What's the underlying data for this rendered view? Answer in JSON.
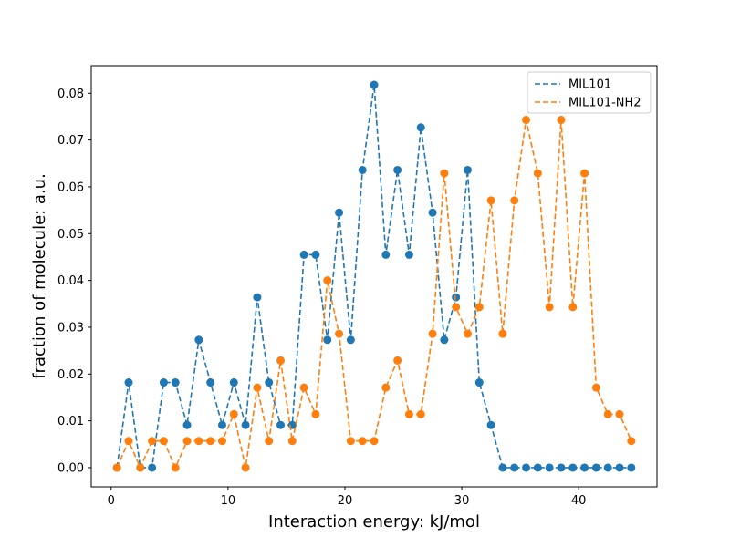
{
  "chart_data": {
    "type": "line",
    "xlabel": "Interaction energy: kJ/mol",
    "ylabel": "fraction of molecule: a.u.",
    "xlim": [
      -1.7,
      46.7
    ],
    "ylim": [
      -0.0041,
      0.0859
    ],
    "xticks": [
      0,
      10,
      20,
      30,
      40
    ],
    "yticks": [
      0.0,
      0.01,
      0.02,
      0.03,
      0.04,
      0.05,
      0.06,
      0.07,
      0.08
    ],
    "ytick_labels": [
      "0.00",
      "0.01",
      "0.02",
      "0.03",
      "0.04",
      "0.05",
      "0.06",
      "0.07",
      "0.08"
    ],
    "grid": false,
    "legend_position": "top-right",
    "x": [
      0.5,
      1.5,
      2.5,
      3.5,
      4.5,
      5.5,
      6.5,
      7.5,
      8.5,
      9.5,
      10.5,
      11.5,
      12.5,
      13.5,
      14.5,
      15.5,
      16.5,
      17.5,
      18.5,
      19.5,
      20.5,
      21.5,
      22.5,
      23.5,
      24.5,
      25.5,
      26.5,
      27.5,
      28.5,
      29.5,
      30.5,
      31.5,
      32.5,
      33.5,
      34.5,
      35.5,
      36.5,
      37.5,
      38.5,
      39.5,
      40.5,
      41.5,
      42.5,
      43.5,
      44.5
    ],
    "series": [
      {
        "name": "MIL101",
        "color": "#1f77b4",
        "line_style": "dashed",
        "marker": "circle",
        "values": [
          0.0,
          0.0182,
          0.0,
          0.0,
          0.0182,
          0.0182,
          0.0091,
          0.0273,
          0.0182,
          0.0091,
          0.0182,
          0.0091,
          0.0364,
          0.0182,
          0.0091,
          0.0091,
          0.0455,
          0.0455,
          0.0273,
          0.0545,
          0.0273,
          0.0636,
          0.0818,
          0.0455,
          0.0636,
          0.0455,
          0.0727,
          0.0545,
          0.0273,
          0.0364,
          0.0636,
          0.0182,
          0.0091,
          0.0,
          0.0,
          0.0,
          0.0,
          0.0,
          0.0,
          0.0,
          0.0,
          0.0,
          0.0,
          0.0,
          0.0
        ]
      },
      {
        "name": "MIL101-NH2",
        "color": "#ff7f0e",
        "line_style": "dashed",
        "marker": "circle",
        "values": [
          0.0,
          0.0057,
          0.0,
          0.0057,
          0.0057,
          0.0,
          0.0057,
          0.0057,
          0.0057,
          0.0057,
          0.0114,
          0.0,
          0.0171,
          0.0057,
          0.0229,
          0.0057,
          0.0171,
          0.0114,
          0.04,
          0.0286,
          0.0057,
          0.0057,
          0.0057,
          0.0171,
          0.0229,
          0.0114,
          0.0114,
          0.0286,
          0.0629,
          0.0343,
          0.0286,
          0.0343,
          0.0571,
          0.0286,
          0.0571,
          0.0743,
          0.0629,
          0.0343,
          0.0743,
          0.0343,
          0.0629,
          0.0171,
          0.0114,
          0.0114,
          0.0057
        ]
      }
    ]
  }
}
